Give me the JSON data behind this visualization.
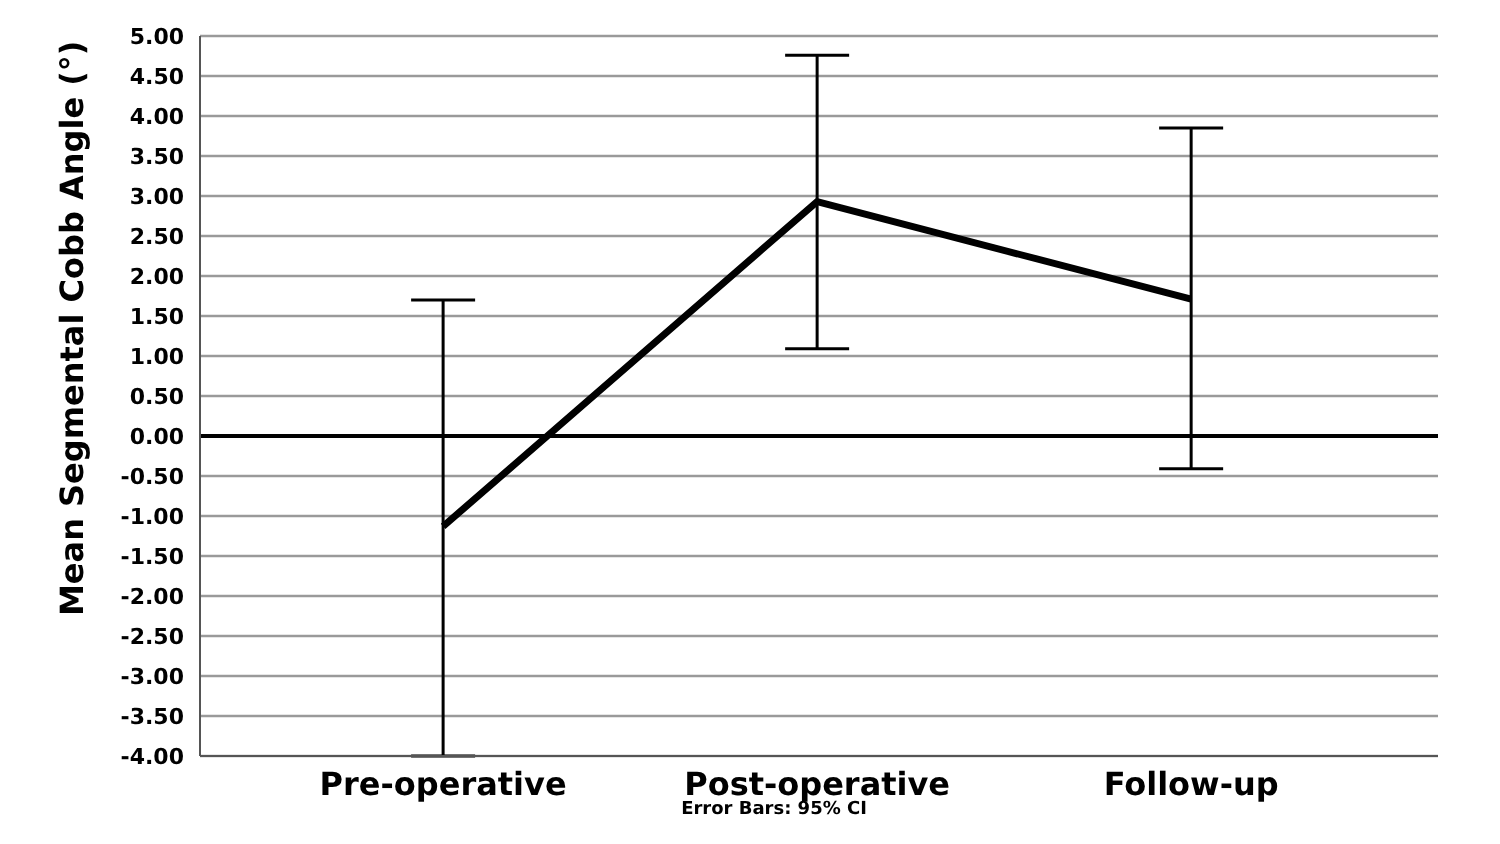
{
  "chart_data": {
    "type": "line",
    "ylabel": "Mean Segmental Cobb Angle (°)",
    "annotations": [
      "Error Bars: 95% CI"
    ],
    "categories": [
      "Pre-operative",
      "Post-operative",
      "Follow-up"
    ],
    "series": [
      {
        "color": "#000000",
        "values": [
          -1.13,
          2.93,
          1.71
        ],
        "errors": [
          [
            -4.0,
            1.7
          ],
          [
            1.09,
            4.76
          ],
          [
            -0.41,
            3.85
          ]
        ]
      }
    ],
    "ylim": [
      -4,
      5
    ],
    "yticks": [
      {
        "value": -4,
        "label": "-4.00"
      },
      {
        "value": -3.5,
        "label": "-3.50"
      },
      {
        "value": -3,
        "label": "-3.00"
      },
      {
        "value": -2.5,
        "label": "-2.50"
      },
      {
        "value": -2,
        "label": "-2.00"
      },
      {
        "value": -1.5,
        "label": "-1.50"
      },
      {
        "value": -1,
        "label": "-1.00"
      },
      {
        "value": -0.5,
        "label": "-0.50"
      },
      {
        "value": 0,
        "label": "0.00"
      },
      {
        "value": 0.5,
        "label": "0.50"
      },
      {
        "value": 1,
        "label": "1.00"
      },
      {
        "value": 1.5,
        "label": "1.50"
      },
      {
        "value": 2,
        "label": "2.00"
      },
      {
        "value": 2.5,
        "label": "2.50"
      },
      {
        "value": 3,
        "label": "3.00"
      },
      {
        "value": 3.5,
        "label": "3.50"
      },
      {
        "value": 4,
        "label": "4.00"
      },
      {
        "value": 4.5,
        "label": "4.50"
      },
      {
        "value": 5,
        "label": "5.00"
      }
    ],
    "ref_lines": [
      {
        "axis": "y",
        "value": 0,
        "color": "#000000"
      }
    ],
    "grid": "y",
    "marker": "none",
    "line_style": "solid"
  }
}
